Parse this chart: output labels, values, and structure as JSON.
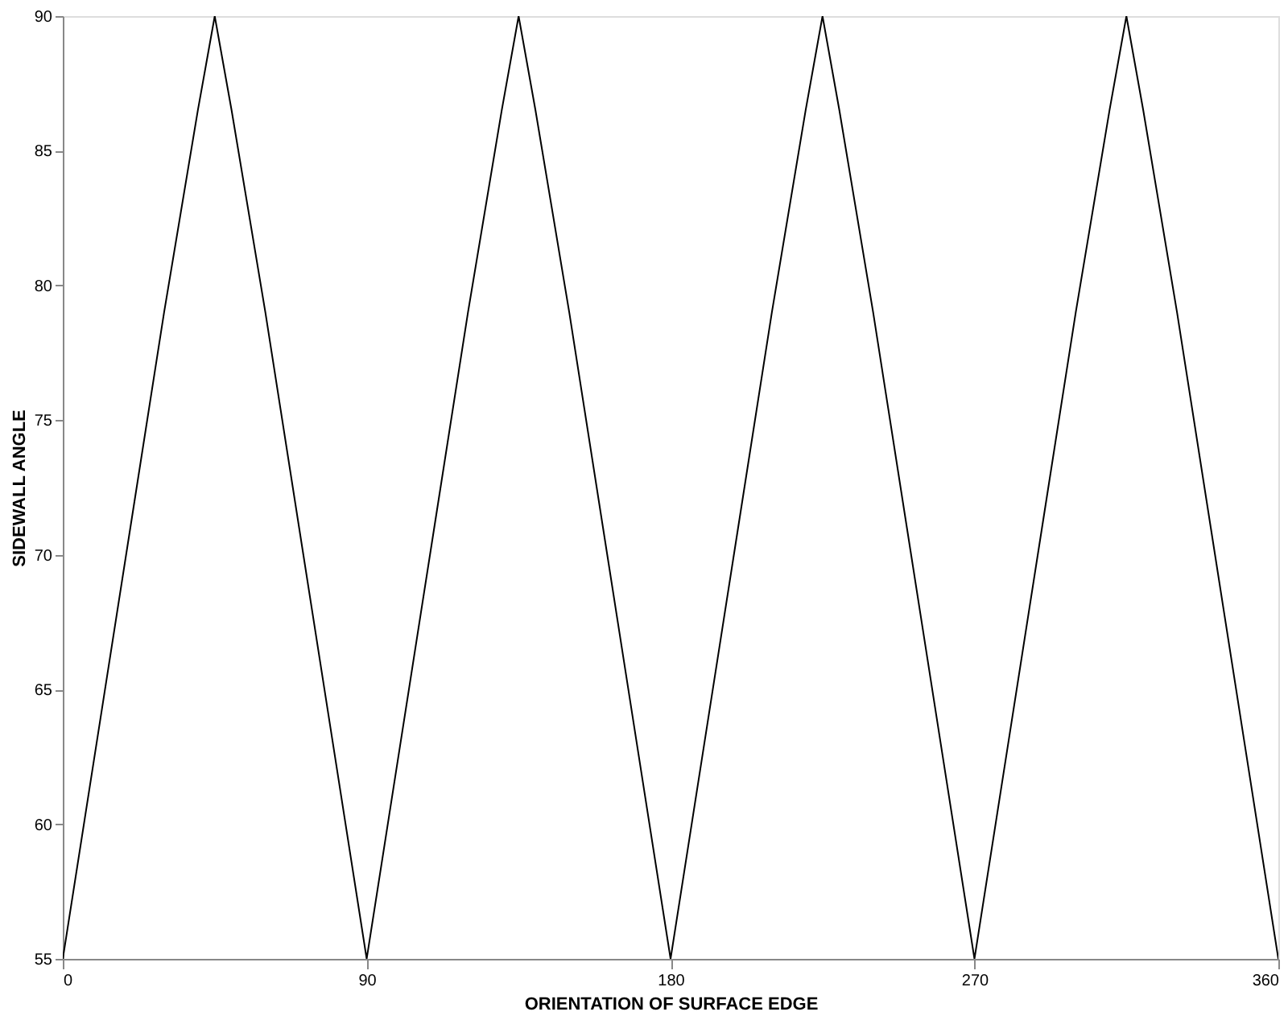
{
  "chart_data": {
    "type": "line",
    "xlabel": "ORIENTATION OF SURFACE EDGE",
    "ylabel": "SIDEWALL ANGLE",
    "x": [
      0,
      10,
      20,
      30,
      40,
      45,
      50,
      60,
      70,
      80,
      90,
      100,
      110,
      120,
      130,
      135,
      140,
      150,
      160,
      170,
      180,
      190,
      200,
      210,
      220,
      225,
      230,
      240,
      250,
      260,
      270,
      280,
      290,
      300,
      310,
      315,
      320,
      330,
      340,
      350,
      360
    ],
    "series": [
      {
        "color": "#000000",
        "values": [
          55,
          63,
          71,
          79,
          86.5,
          90,
          86.5,
          79,
          71,
          63,
          55,
          63,
          71,
          79,
          86.5,
          90,
          86.5,
          79,
          71,
          63,
          55,
          63,
          71,
          79,
          86.5,
          90,
          86.5,
          79,
          71,
          63,
          55,
          63,
          71,
          79,
          86.5,
          90,
          86.5,
          79,
          71,
          63,
          55
        ]
      }
    ],
    "xlim": [
      0,
      360
    ],
    "xticks": [
      0,
      90,
      180,
      270,
      360
    ],
    "ylim": [
      55,
      90
    ],
    "yticks": [
      55,
      60,
      65,
      70,
      75,
      80,
      85,
      90
    ],
    "grid": false,
    "legend": false,
    "marker": "none",
    "line_style": "solid"
  }
}
